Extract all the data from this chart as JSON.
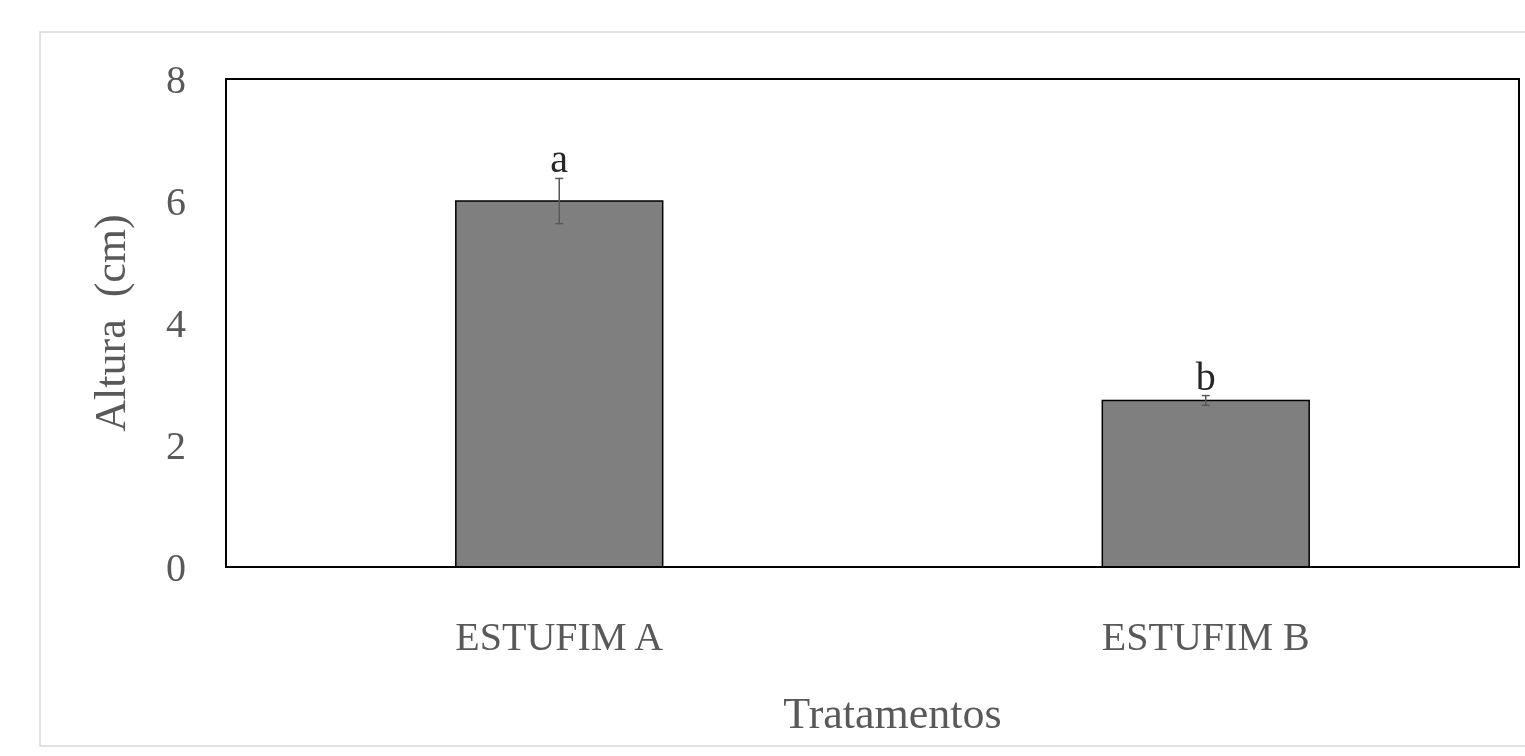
{
  "chart_data": {
    "type": "bar",
    "xlabel": "Tratamentos",
    "ylabel": "Altura  (cm)",
    "categories": [
      "ESTUFIM A",
      "ESTUFIM B"
    ],
    "values": [
      6.0,
      2.73
    ],
    "errors": [
      0.37,
      0.08
    ],
    "color": "#7f7f7f",
    "ylim": [
      0,
      8
    ],
    "yticks": [
      0,
      2,
      4,
      6,
      8
    ],
    "grid": false,
    "annotations": [
      {
        "text": "a",
        "x": "ESTUFIM A",
        "y": 6.37
      },
      {
        "text": "b",
        "x": "ESTUFIM B",
        "y": 2.81
      }
    ]
  }
}
